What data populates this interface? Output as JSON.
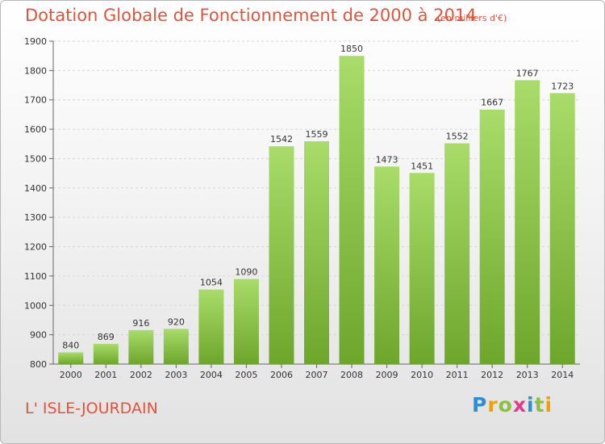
{
  "header": {
    "title": "Dotation Globale de Fonctionnement de 2000 à 2014",
    "unit": "(en milliers d'€)"
  },
  "footer": {
    "place": "L' ISLE-JOURDAIN",
    "logo_letters": [
      "P",
      "r",
      "o",
      "x",
      "i",
      "t",
      "i"
    ],
    "logo_colors": [
      "#2a8fd8",
      "#f0a000",
      "#8bc03a",
      "#e03a8a",
      "#2a8fd8",
      "#8bc03a",
      "#f0a000"
    ]
  },
  "chart_data": {
    "type": "bar",
    "title": "Dotation Globale de Fonctionnement de 2000 à 2014",
    "categories": [
      "2000",
      "2001",
      "2002",
      "2003",
      "2004",
      "2005",
      "2006",
      "2007",
      "2008",
      "2009",
      "2010",
      "2011",
      "2012",
      "2013",
      "2014"
    ],
    "values": [
      840,
      869,
      916,
      920,
      1054,
      1090,
      1542,
      1559,
      1850,
      1473,
      1451,
      1552,
      1667,
      1767,
      1723
    ],
    "ylim": [
      800,
      1900
    ],
    "yticks": [
      800,
      900,
      1000,
      1100,
      1200,
      1300,
      1400,
      1500,
      1600,
      1700,
      1800,
      1900
    ],
    "grid": true,
    "bar_color_light": "#a9dc6a",
    "bar_color_dark": "#6ea62c"
  }
}
